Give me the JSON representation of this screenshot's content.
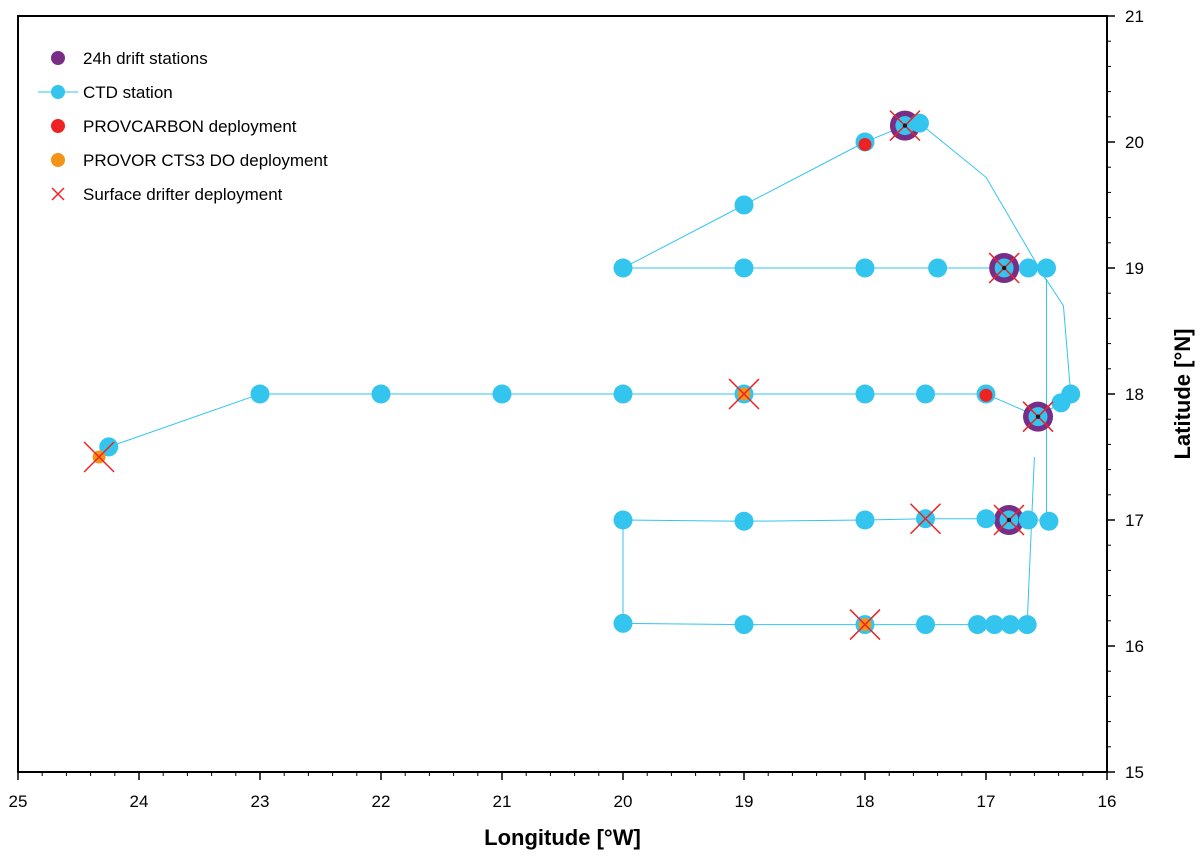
{
  "chart_data": {
    "type": "scatter",
    "title": "",
    "xlabel": "Longitude [°W]",
    "ylabel": "Latitude [°N]",
    "xlim": [
      25,
      16
    ],
    "ylim": [
      15,
      21
    ],
    "x_ticks": [
      25,
      24,
      23,
      22,
      21,
      20,
      19,
      18,
      17,
      16
    ],
    "y_ticks": [
      15,
      16,
      17,
      18,
      19,
      20,
      21
    ],
    "x_axis_reversed": true,
    "y_axis_position": "right",
    "grid": false,
    "legend_position": "top-left",
    "series": [
      {
        "name": "24h drift stations",
        "marker": "large-circle",
        "color": "#7a2d86",
        "points": [
          [
            17.67,
            20.13
          ],
          [
            16.85,
            19.0
          ],
          [
            16.57,
            17.82
          ],
          [
            16.81,
            17.0
          ]
        ]
      },
      {
        "name": "CTD station",
        "marker": "circle",
        "line": true,
        "color": "#33c5ee",
        "track": [
          [
            24.25,
            17.58
          ],
          [
            23.0,
            18.0
          ],
          [
            22.0,
            18.0
          ],
          [
            21.0,
            18.0
          ],
          [
            20.0,
            18.0
          ],
          [
            19.0,
            18.0
          ],
          [
            18.0,
            18.0
          ],
          [
            17.5,
            18.0
          ],
          [
            17.0,
            18.0
          ],
          [
            16.57,
            17.82
          ],
          [
            16.38,
            17.93
          ],
          [
            16.3,
            18.0
          ],
          [
            16.36,
            18.7
          ],
          [
            16.55,
            18.98
          ],
          [
            16.5,
            18.98
          ],
          [
            16.65,
            19.0
          ],
          [
            16.85,
            19.0
          ],
          [
            17.4,
            19.0
          ],
          [
            18.0,
            19.0
          ],
          [
            19.0,
            19.0
          ],
          [
            20.0,
            19.0
          ],
          [
            19.0,
            19.5
          ],
          [
            18.0,
            20.0
          ],
          [
            17.67,
            20.13
          ],
          [
            17.55,
            20.15
          ],
          [
            17.0,
            19.72
          ],
          [
            16.5,
            18.9
          ],
          [
            16.5,
            17.0
          ],
          [
            16.65,
            17.0
          ],
          [
            16.81,
            17.0
          ],
          [
            17.0,
            17.01
          ],
          [
            17.5,
            17.01
          ],
          [
            18.0,
            17.0
          ],
          [
            19.0,
            16.99
          ],
          [
            20.0,
            17.0
          ],
          [
            20.0,
            16.18
          ],
          [
            19.0,
            16.17
          ],
          [
            18.0,
            16.17
          ],
          [
            17.5,
            16.17
          ],
          [
            17.07,
            16.17
          ],
          [
            16.93,
            16.17
          ],
          [
            16.8,
            16.17
          ],
          [
            16.66,
            16.17
          ],
          [
            16.6,
            17.5
          ]
        ],
        "points": [
          [
            24.25,
            17.58
          ],
          [
            23.0,
            18.0
          ],
          [
            22.0,
            18.0
          ],
          [
            21.0,
            18.0
          ],
          [
            20.0,
            18.0
          ],
          [
            19.0,
            18.0
          ],
          [
            18.0,
            18.0
          ],
          [
            17.5,
            18.0
          ],
          [
            17.0,
            18.0
          ],
          [
            16.57,
            17.82
          ],
          [
            16.38,
            17.93
          ],
          [
            16.3,
            18.0
          ],
          [
            20.0,
            19.0
          ],
          [
            19.0,
            19.0
          ],
          [
            18.0,
            19.0
          ],
          [
            17.4,
            19.0
          ],
          [
            16.85,
            19.0
          ],
          [
            16.65,
            19.0
          ],
          [
            16.5,
            19.0
          ],
          [
            19.0,
            19.5
          ],
          [
            18.0,
            20.0
          ],
          [
            17.67,
            20.13
          ],
          [
            17.55,
            20.15
          ],
          [
            20.0,
            17.0
          ],
          [
            19.0,
            16.99
          ],
          [
            18.0,
            17.0
          ],
          [
            17.5,
            17.01
          ],
          [
            17.0,
            17.01
          ],
          [
            16.81,
            17.0
          ],
          [
            16.65,
            17.0
          ],
          [
            16.48,
            16.99
          ],
          [
            20.0,
            16.18
          ],
          [
            19.0,
            16.17
          ],
          [
            18.0,
            16.17
          ],
          [
            17.5,
            16.17
          ],
          [
            17.07,
            16.17
          ],
          [
            16.93,
            16.17
          ],
          [
            16.8,
            16.17
          ],
          [
            16.66,
            16.17
          ]
        ]
      },
      {
        "name": "PROVCARBON deployment",
        "marker": "small-circle",
        "color": "#ee2222",
        "points": [
          [
            18.0,
            19.98
          ],
          [
            17.0,
            17.99
          ]
        ]
      },
      {
        "name": "PROVOR CTS3 DO deployment",
        "marker": "small-circle",
        "color": "#f39419",
        "points": [
          [
            24.33,
            17.5
          ],
          [
            19.0,
            18.0
          ],
          [
            18.0,
            16.17
          ]
        ]
      },
      {
        "name": "Surface drifter deployment",
        "marker": "x",
        "color": "#ee2222",
        "points": [
          [
            24.33,
            17.5
          ],
          [
            19.0,
            18.0
          ],
          [
            18.0,
            16.17
          ],
          [
            17.67,
            20.13
          ],
          [
            16.85,
            19.0
          ],
          [
            16.57,
            17.82
          ],
          [
            17.5,
            17.01
          ],
          [
            16.81,
            17.0
          ]
        ]
      }
    ]
  }
}
